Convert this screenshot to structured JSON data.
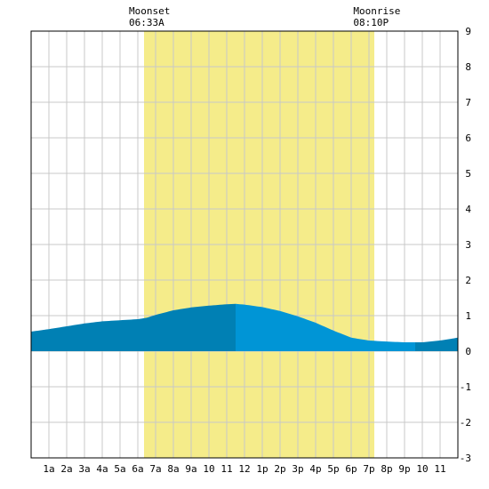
{
  "chart_data": {
    "type": "area",
    "title": "",
    "xlabel": "",
    "ylabel": "",
    "xlim": [
      0,
      24
    ],
    "ylim": [
      -3,
      9
    ],
    "grid": true,
    "x_tick_labels": [
      "1a",
      "2a",
      "3a",
      "4a",
      "5a",
      "6a",
      "7a",
      "8a",
      "9a",
      "10",
      "11",
      "12",
      "1p",
      "2p",
      "3p",
      "4p",
      "5p",
      "6p",
      "7p",
      "8p",
      "9p",
      "10",
      "11"
    ],
    "y_tick_labels": [
      "-3",
      "-2",
      "-1",
      "0",
      "1",
      "2",
      "3",
      "4",
      "5",
      "6",
      "7",
      "8",
      "9"
    ],
    "moonset": {
      "label": "Moonset",
      "time": "06:33A",
      "hour": 6.55
    },
    "moonrise": {
      "label": "Moonrise",
      "time": "08:10P",
      "hour": 19.17
    },
    "daylight_band_hours": [
      6.35,
      19.3
    ],
    "tide_series": {
      "x": [
        0,
        1,
        2,
        3,
        4,
        5,
        6,
        6.5,
        7,
        8,
        9,
        10,
        11,
        11.5,
        12,
        13,
        14,
        15,
        16,
        17,
        18,
        19,
        20,
        21,
        22,
        23,
        24
      ],
      "y": [
        0.55,
        0.62,
        0.7,
        0.78,
        0.84,
        0.87,
        0.9,
        0.94,
        1.02,
        1.15,
        1.23,
        1.28,
        1.32,
        1.33,
        1.31,
        1.24,
        1.13,
        0.98,
        0.8,
        0.58,
        0.38,
        0.3,
        0.27,
        0.25,
        0.25,
        0.3,
        0.38
      ]
    },
    "falling_split_hour": 11.5,
    "rising_split_hour": 21.6,
    "colors": {
      "daylight": "#f5ec8a",
      "tide_dark": "#0080b4",
      "tide_light": "#0095d6",
      "grid": "#c8c8c8",
      "frame": "#000000"
    }
  }
}
